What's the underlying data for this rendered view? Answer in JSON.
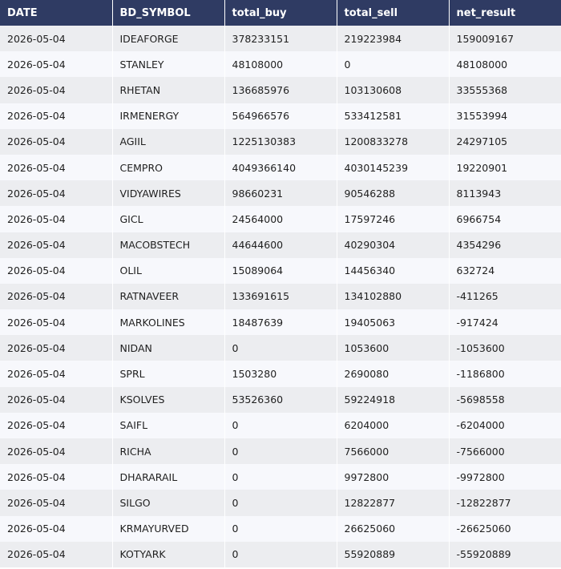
{
  "table": {
    "columns": [
      "DATE",
      "BD_SYMBOL",
      "total_buy",
      "total_sell",
      "net_result"
    ],
    "rows": [
      [
        "2026-05-04",
        "IDEAFORGE",
        "378233151",
        "219223984",
        "159009167"
      ],
      [
        "2026-05-04",
        "STANLEY",
        "48108000",
        "0",
        "48108000"
      ],
      [
        "2026-05-04",
        "RHETAN",
        "136685976",
        "103130608",
        "33555368"
      ],
      [
        "2026-05-04",
        "IRMENERGY",
        "564966576",
        "533412581",
        "31553994"
      ],
      [
        "2026-05-04",
        "AGIIL",
        "1225130383",
        "1200833278",
        "24297105"
      ],
      [
        "2026-05-04",
        "CEMPRO",
        "4049366140",
        "4030145239",
        "19220901"
      ],
      [
        "2026-05-04",
        "VIDYAWIRES",
        "98660231",
        "90546288",
        "8113943"
      ],
      [
        "2026-05-04",
        "GICL",
        "24564000",
        "17597246",
        "6966754"
      ],
      [
        "2026-05-04",
        "MACOBSTECH",
        "44644600",
        "40290304",
        "4354296"
      ],
      [
        "2026-05-04",
        "OLIL",
        "15089064",
        "14456340",
        "632724"
      ],
      [
        "2026-05-04",
        "RATNAVEER",
        "133691615",
        "134102880",
        "-411265"
      ],
      [
        "2026-05-04",
        "MARKOLINES",
        "18487639",
        "19405063",
        "-917424"
      ],
      [
        "2026-05-04",
        "NIDAN",
        "0",
        "1053600",
        "-1053600"
      ],
      [
        "2026-05-04",
        "SPRL",
        "1503280",
        "2690080",
        "-1186800"
      ],
      [
        "2026-05-04",
        "KSOLVES",
        "53526360",
        "59224918",
        "-5698558"
      ],
      [
        "2026-05-04",
        "SAIFL",
        "0",
        "6204000",
        "-6204000"
      ],
      [
        "2026-05-04",
        "RICHA",
        "0",
        "7566000",
        "-7566000"
      ],
      [
        "2026-05-04",
        "DHARARAIL",
        "0",
        "9972800",
        "-9972800"
      ],
      [
        "2026-05-04",
        "SILGO",
        "0",
        "12822877",
        "-12822877"
      ],
      [
        "2026-05-04",
        "KRMAYURVED",
        "0",
        "26625060",
        "-26625060"
      ],
      [
        "2026-05-04",
        "KOTYARK",
        "0",
        "55920889",
        "-55920889"
      ]
    ]
  },
  "colors": {
    "header_bg": "#2f3b63",
    "header_text": "#ffffff",
    "row_odd": "#ecedf0",
    "row_even": "#f7f8fc"
  }
}
